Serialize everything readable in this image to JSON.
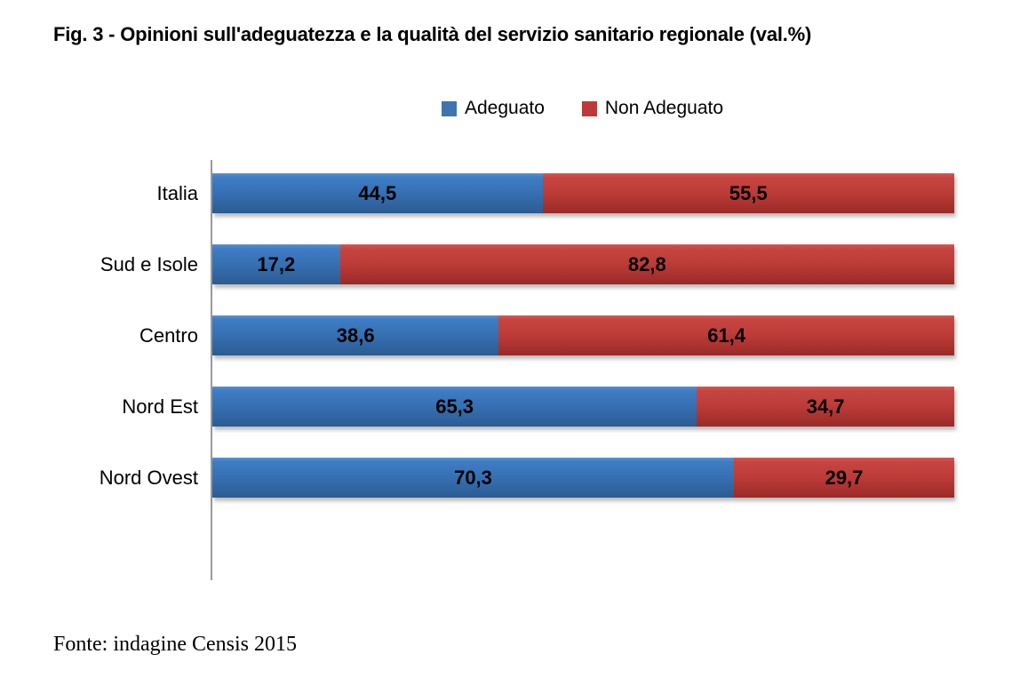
{
  "title": "Fig. 3 - Opinioni sull'adeguatezza e la qualità del servizio sanitario regionale (val.%)",
  "source": "Fonte: indagine Censis 2015",
  "legend": [
    {
      "label": "Adeguato",
      "color": "#3E74B0"
    },
    {
      "label": "Non Adeguato",
      "color": "#BE3A38"
    }
  ],
  "colors": {
    "adeguato": "#3E74B0",
    "non_adeguato": "#BE3A38",
    "axis_line": "#9A9A9A"
  },
  "chart_data": {
    "type": "bar",
    "orientation": "horizontal",
    "stacked": true,
    "grid": false,
    "legend_position": "top-center",
    "xlim": [
      0,
      100
    ],
    "value_format": "comma-decimal",
    "categories": [
      "Italia",
      "Sud e Isole",
      "Centro",
      "Nord Est",
      "Nord Ovest"
    ],
    "series": [
      {
        "name": "Adeguato",
        "color": "#3E74B0",
        "values": [
          44.5,
          17.2,
          38.6,
          65.3,
          70.3
        ],
        "labels": [
          "44,5",
          "17,2",
          "38,6",
          "65,3",
          "70,3"
        ]
      },
      {
        "name": "Non Adeguato",
        "color": "#BE3A38",
        "values": [
          55.5,
          82.8,
          61.4,
          34.7,
          29.7
        ],
        "labels": [
          "55,5",
          "82,8",
          "61,4",
          "34,7",
          "29,7"
        ]
      }
    ]
  },
  "layout": {
    "row_top_start": 195,
    "row_pitch": 80
  }
}
